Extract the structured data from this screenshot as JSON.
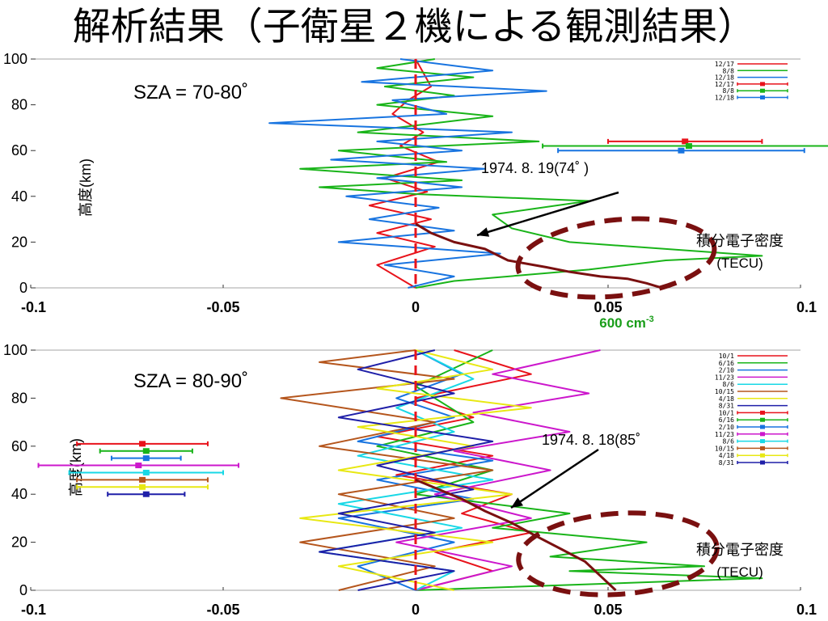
{
  "slide": {
    "title": "解析結果（子衛星２機による観測結果）"
  },
  "chart_data": [
    {
      "type": "line",
      "panel": "top",
      "annotation_sza": "SZA = 70-80˚",
      "ylabel": "高度(km)",
      "xlim": [
        -0.1,
        0.1
      ],
      "ylim": [
        0,
        100
      ],
      "x_ticks": [
        "-0.1",
        "-0.05",
        "0",
        "0.05",
        "0.1"
      ],
      "y_ticks": [
        "0",
        "20",
        "40",
        "60",
        "80",
        "100"
      ],
      "grid": false,
      "legend_position": "top-right",
      "legend": [
        "12/17",
        "8/8",
        "12/18",
        "12/17",
        "8/8",
        "12/18"
      ],
      "series": [
        {
          "name": "12/17",
          "color": "#e8131b",
          "x": [
            0.0,
            -0.01,
            0.005,
            -0.01,
            0.004,
            -0.012,
            0.003,
            -0.008,
            0.006,
            -0.004,
            0.002,
            -0.006,
            -0.002,
            0.004,
            0.002,
            0.0
          ],
          "y": [
            0,
            10,
            18,
            24,
            30,
            36,
            42,
            48,
            55,
            62,
            68,
            76,
            82,
            88,
            94,
            100
          ]
        },
        {
          "name": "8/8",
          "color": "#19b419",
          "x": [
            0.0,
            0.01,
            0.045,
            0.065,
            0.09,
            0.04,
            0.025,
            0.02,
            0.045,
            0.0,
            -0.025,
            0.012,
            -0.03,
            0.008,
            -0.02,
            0.032,
            -0.015,
            0.02,
            -0.01,
            0.01,
            -0.008,
            0.015,
            -0.01,
            0.005
          ],
          "y": [
            0,
            3,
            8,
            12,
            14,
            20,
            26,
            32,
            38,
            41,
            44,
            47,
            52,
            55,
            60,
            64,
            68,
            75,
            80,
            84,
            88,
            92,
            96,
            100
          ]
        },
        {
          "name": "12/18",
          "color": "#1874e0",
          "x": [
            -0.002,
            0.01,
            -0.008,
            0.022,
            -0.02,
            0.01,
            -0.012,
            0.006,
            -0.018,
            0.012,
            -0.01,
            0.018,
            -0.022,
            0.012,
            -0.01,
            0.025,
            -0.038,
            0.008,
            -0.006,
            0.034,
            -0.014,
            0.02,
            -0.004
          ],
          "y": [
            0,
            5,
            10,
            15,
            20,
            25,
            30,
            35,
            40,
            44,
            48,
            52,
            56,
            60,
            64,
            68,
            72,
            76,
            82,
            86,
            90,
            95,
            100
          ]
        }
      ],
      "error_bars": [
        {
          "name": "12/17",
          "color": "#e8131b",
          "center": 0.07,
          "xerr": 0.02,
          "y": 64
        },
        {
          "name": "8/8",
          "color": "#19b419",
          "center": 0.071,
          "xerr": 0.038,
          "y": 62
        },
        {
          "name": "12/18",
          "color": "#1874e0",
          "center": 0.069,
          "xerr": 0.032,
          "y": 60
        }
      ],
      "reference_line": {
        "x": 0,
        "color": "#e8131b",
        "style": "dashed"
      },
      "model_profile": {
        "label": "1974. 8. 19(74˚ )",
        "color": "#7a1010",
        "x": [
          0.0,
          0.004,
          0.01,
          0.018,
          0.024,
          0.034,
          0.04,
          0.048,
          0.055,
          0.06,
          0.062,
          0.064
        ],
        "y": [
          28,
          24,
          20,
          17,
          12,
          9,
          7,
          5,
          4,
          2,
          1,
          0
        ]
      },
      "unit_annotation": {
        "label": "600 cm",
        "superscript": "-3",
        "color": "#1a9e1a"
      },
      "tecu_label": [
        "積分電子密度",
        "(TECU)"
      ]
    },
    {
      "type": "line",
      "panel": "bottom",
      "annotation_sza": "SZA = 80-90˚",
      "ylabel": "高度(km)",
      "xlim": [
        -0.1,
        0.1
      ],
      "ylim": [
        0,
        100
      ],
      "x_ticks": [
        "-0.1",
        "-0.05",
        "0",
        "0.05",
        "0.1"
      ],
      "y_ticks": [
        "0",
        "20",
        "40",
        "60",
        "80",
        "100"
      ],
      "grid": false,
      "legend_position": "top-right",
      "legend": [
        "10/1",
        "6/16",
        "2/10",
        "11/23",
        "8/6",
        "10/15",
        "4/18",
        "8/31",
        "10/1",
        "6/16",
        "2/10",
        "11/23",
        "8/6",
        "10/15",
        "4/18",
        "8/31"
      ],
      "series": [
        {
          "name": "10/1",
          "color": "#e8131b",
          "x": [
            0.0,
            0.02,
            0.005,
            0.03,
            0.012,
            0.025,
            -0.005,
            0.02,
            -0.01,
            0.015,
            0.0,
            0.03,
            0.01
          ],
          "y": [
            0,
            8,
            16,
            24,
            32,
            40,
            48,
            56,
            64,
            72,
            80,
            90,
            100
          ]
        },
        {
          "name": "6/16",
          "color": "#19b419",
          "x": [
            0.0,
            0.09,
            0.04,
            0.075,
            0.035,
            0.06,
            0.02,
            0.04,
            0.0,
            0.02,
            -0.01,
            0.015,
            0.0,
            0.02
          ],
          "y": [
            0,
            5,
            8,
            10,
            14,
            20,
            26,
            32,
            40,
            50,
            60,
            70,
            85,
            100
          ]
        },
        {
          "name": "2/10",
          "color": "#1874e0",
          "x": [
            0.0,
            -0.015,
            0.01,
            -0.02,
            0.015,
            -0.01,
            0.02,
            -0.015,
            0.01,
            -0.005,
            0.012,
            0.0
          ],
          "y": [
            0,
            10,
            20,
            30,
            38,
            46,
            54,
            62,
            72,
            80,
            90,
            100
          ]
        },
        {
          "name": "11/23",
          "color": "#cc17cc",
          "x": [
            0.0,
            0.025,
            -0.005,
            0.03,
            0.005,
            0.035,
            0.01,
            0.04,
            0.015,
            0.045,
            0.02,
            0.048
          ],
          "y": [
            0,
            10,
            20,
            30,
            40,
            50,
            58,
            66,
            74,
            82,
            90,
            100
          ]
        },
        {
          "name": "8/6",
          "color": "#18d8e6",
          "x": [
            0.0,
            0.01,
            -0.025,
            0.012,
            -0.02,
            0.02,
            -0.015,
            0.01,
            -0.005,
            0.015,
            0.0
          ],
          "y": [
            0,
            8,
            16,
            26,
            36,
            46,
            56,
            66,
            76,
            88,
            100
          ]
        },
        {
          "name": "10/15",
          "color": "#b5561d",
          "x": [
            -0.02,
            0.005,
            -0.03,
            0.01,
            -0.02,
            0.02,
            -0.025,
            0.005,
            -0.035,
            0.01,
            -0.025,
            0.0
          ],
          "y": [
            0,
            10,
            20,
            30,
            40,
            50,
            60,
            70,
            80,
            88,
            95,
            100
          ]
        },
        {
          "name": "4/18",
          "color": "#e8e813",
          "x": [
            0.01,
            -0.02,
            0.02,
            -0.03,
            0.025,
            -0.02,
            0.015,
            -0.015,
            0.03,
            -0.01,
            0.02,
            0.0
          ],
          "y": [
            0,
            10,
            20,
            30,
            40,
            50,
            60,
            68,
            76,
            84,
            92,
            100
          ]
        },
        {
          "name": "8/31",
          "color": "#1f1fa8",
          "x": [
            -0.015,
            0.01,
            -0.025,
            0.005,
            -0.02,
            0.015,
            -0.01,
            0.02,
            -0.02,
            0.01,
            -0.015,
            0.005
          ],
          "y": [
            0,
            8,
            16,
            24,
            32,
            42,
            52,
            62,
            72,
            82,
            92,
            100
          ]
        }
      ],
      "error_bars": [
        {
          "name": "10/1",
          "color": "#e8131b",
          "center": -0.071,
          "xerr": 0.017,
          "y": 61
        },
        {
          "name": "6/16",
          "color": "#19b419",
          "center": -0.07,
          "xerr": 0.012,
          "y": 58
        },
        {
          "name": "2/10",
          "color": "#1874e0",
          "center": -0.07,
          "xerr": 0.009,
          "y": 55
        },
        {
          "name": "11/23",
          "color": "#cc17cc",
          "center": -0.072,
          "xerr": 0.026,
          "y": 52
        },
        {
          "name": "8/6",
          "color": "#18d8e6",
          "center": -0.07,
          "xerr": 0.02,
          "y": 49
        },
        {
          "name": "10/15",
          "color": "#b5561d",
          "center": -0.071,
          "xerr": 0.017,
          "y": 46
        },
        {
          "name": "4/18",
          "color": "#e8e813",
          "center": -0.071,
          "xerr": 0.017,
          "y": 43
        },
        {
          "name": "8/31",
          "color": "#1f1fa8",
          "center": -0.07,
          "xerr": 0.01,
          "y": 40
        }
      ],
      "reference_line": {
        "x": 0,
        "color": "#e8131b",
        "style": "dashed"
      },
      "model_profile": {
        "label": "1974. 8. 18(85˚",
        "color": "#7a1010",
        "x": [
          0.0,
          0.006,
          0.012,
          0.018,
          0.025,
          0.032,
          0.038,
          0.044,
          0.048,
          0.052
        ],
        "y": [
          46,
          42,
          38,
          33,
          28,
          22,
          17,
          12,
          6,
          0
        ]
      },
      "tecu_label": [
        "積分電子密度",
        "(TECU)"
      ]
    }
  ]
}
